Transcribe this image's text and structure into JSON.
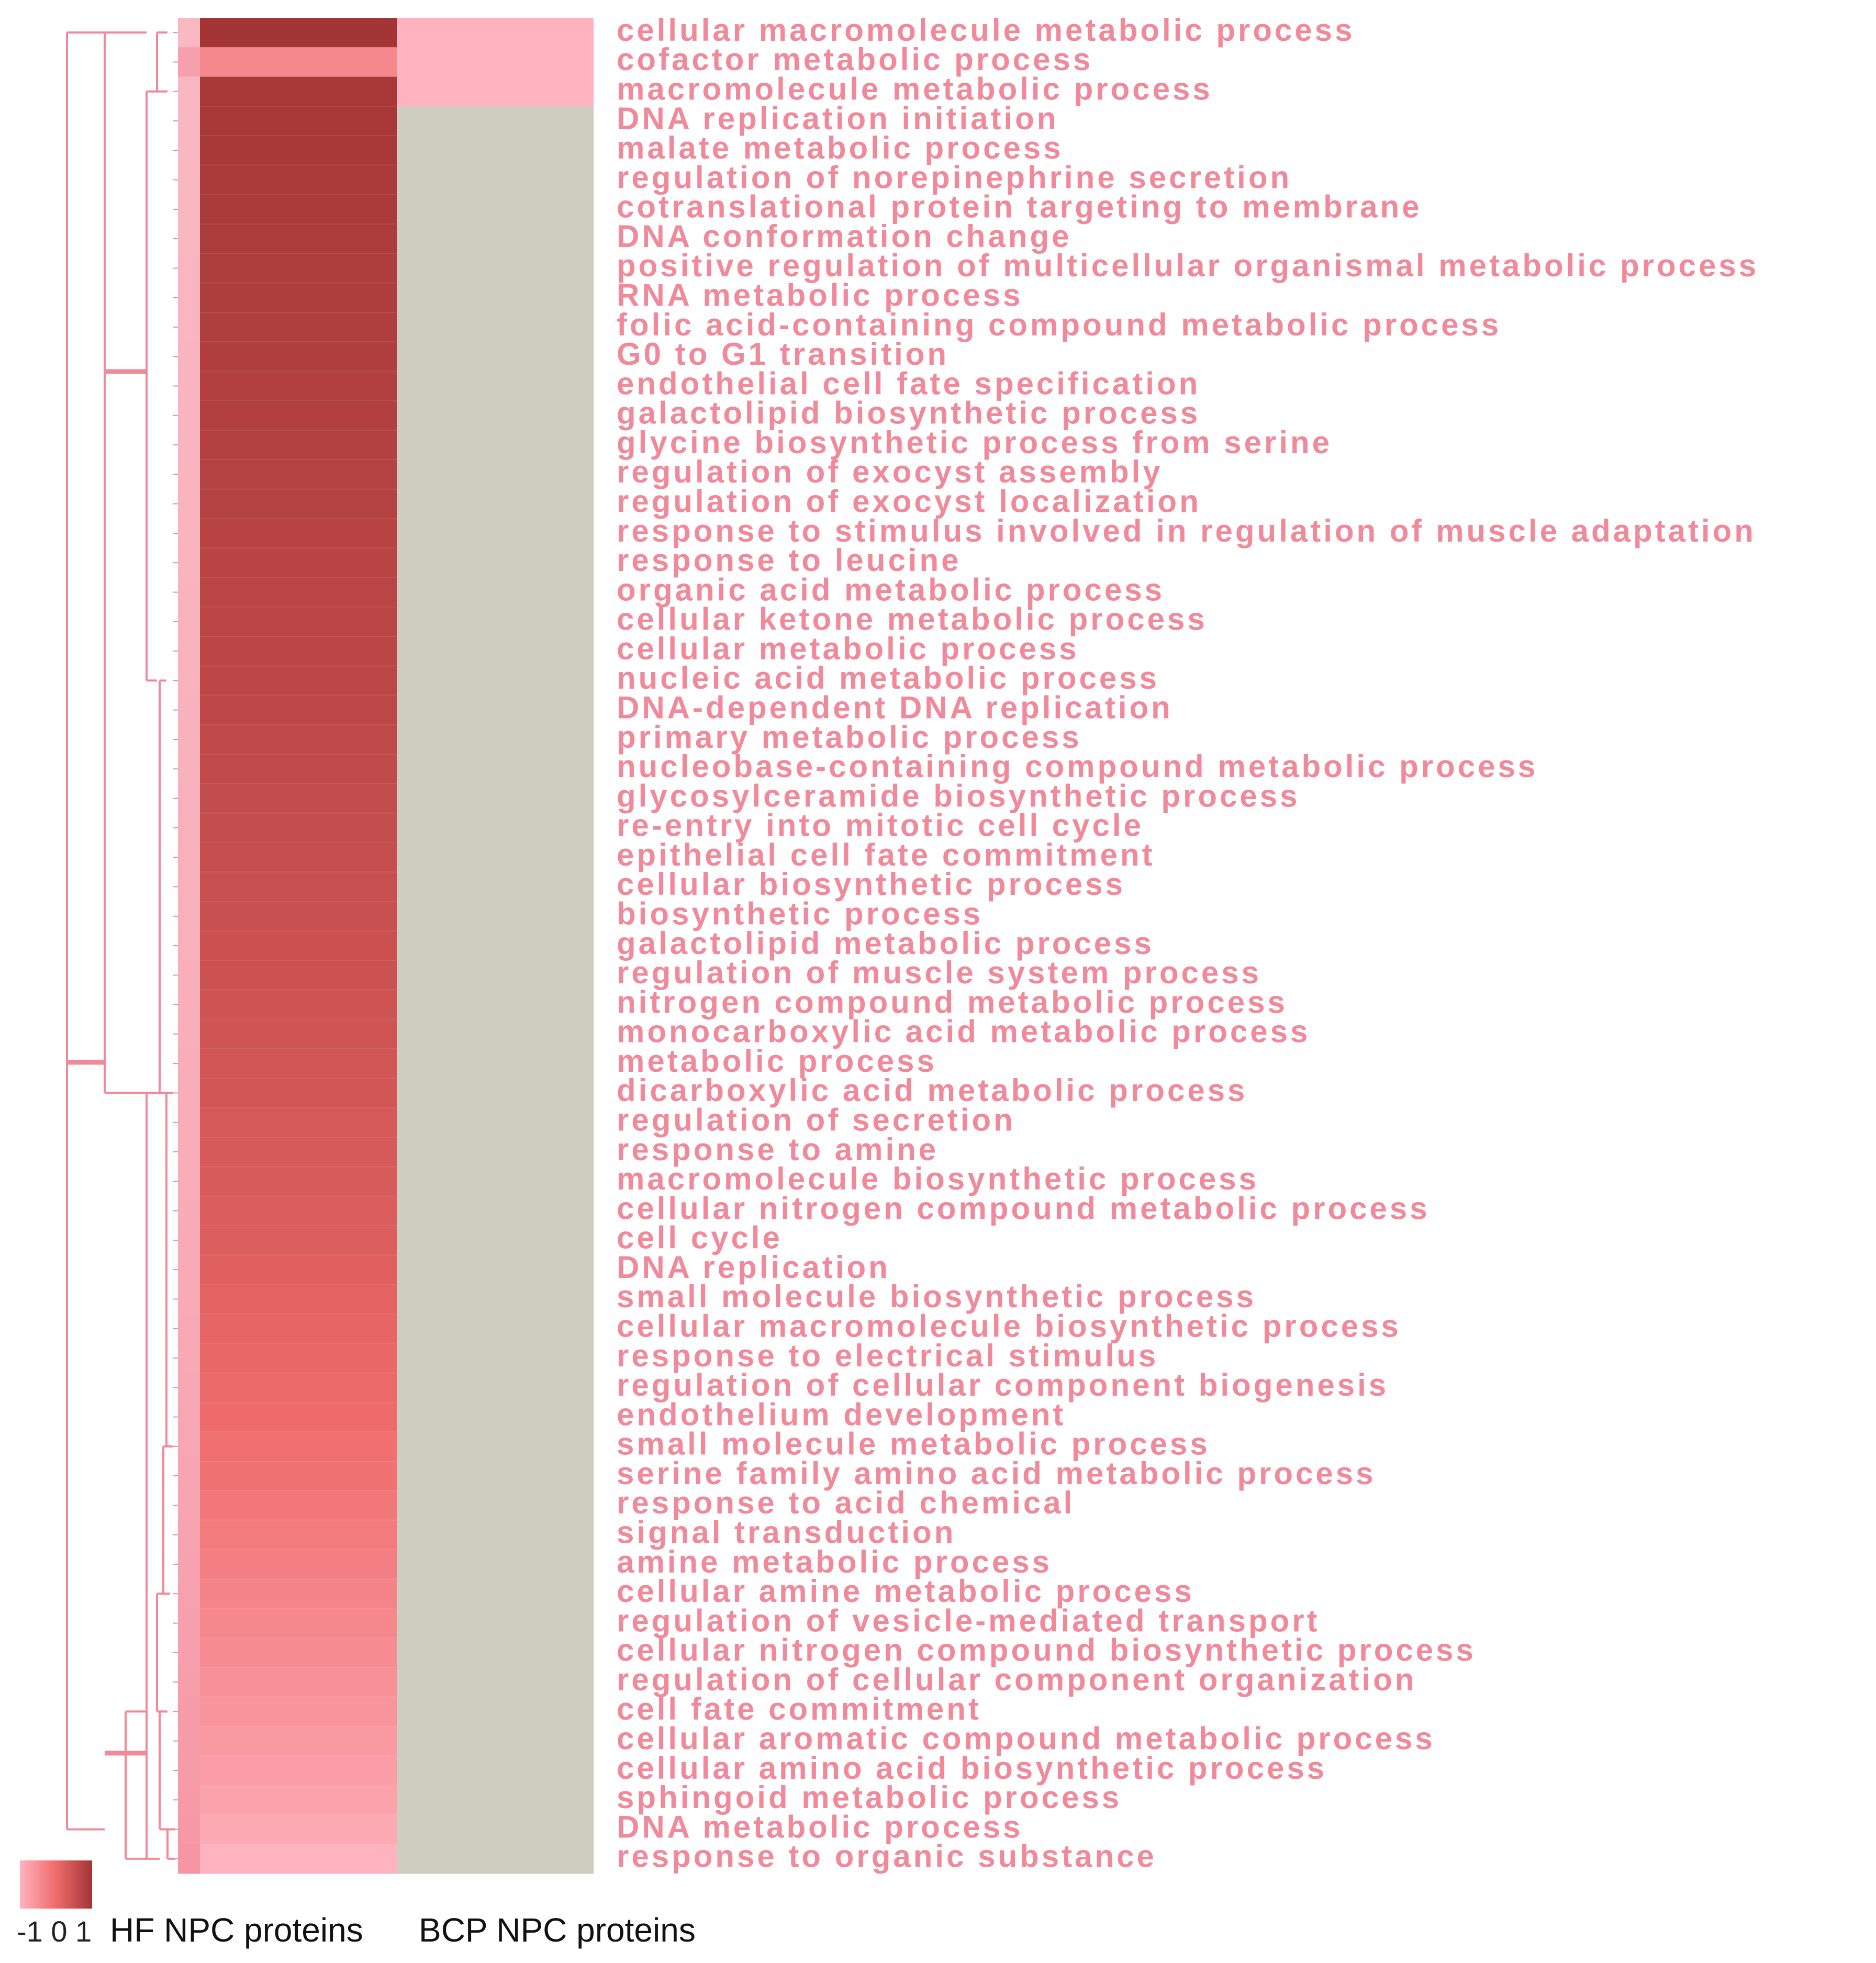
{
  "chart_data": {
    "type": "heatmap",
    "columns": [
      "HF NPC proteins",
      "BCP NPC proteins"
    ],
    "color_scale": {
      "ticks": [
        "-1",
        "0",
        "1"
      ],
      "low_color": "#ffb3bf",
      "high_color": "#a33535",
      "missing_color": "#cfcdbf",
      "label_color": "#f08a9a",
      "dendrogram_color": "#f08a9a"
    },
    "rows": [
      {
        "term": "cellular macromolecule metabolic process",
        "hf": 1.0,
        "bcp": 0.0
      },
      {
        "term": "cofactor metabolic process",
        "hf": 0.3,
        "bcp": 0.0
      },
      {
        "term": "macromolecule metabolic process",
        "hf": 0.97,
        "bcp": 0.0
      },
      {
        "term": "DNA replication initiation",
        "hf": 0.97,
        "bcp": null
      },
      {
        "term": "malate metabolic process",
        "hf": 0.96,
        "bcp": null
      },
      {
        "term": "regulation of norepinephrine secretion",
        "hf": 0.95,
        "bcp": null
      },
      {
        "term": "cotranslational protein targeting to membrane",
        "hf": 0.95,
        "bcp": null
      },
      {
        "term": "DNA conformation change",
        "hf": 0.94,
        "bcp": null
      },
      {
        "term": "positive regulation of multicellular organismal metabolic process",
        "hf": 0.93,
        "bcp": null
      },
      {
        "term": "RNA metabolic process",
        "hf": 0.93,
        "bcp": null
      },
      {
        "term": "folic acid-containing compound metabolic process",
        "hf": 0.92,
        "bcp": null
      },
      {
        "term": "G0 to G1 transition",
        "hf": 0.91,
        "bcp": null
      },
      {
        "term": "endothelial cell fate specification",
        "hf": 0.9,
        "bcp": null
      },
      {
        "term": "galactolipid biosynthetic process",
        "hf": 0.9,
        "bcp": null
      },
      {
        "term": "glycine biosynthetic process from serine",
        "hf": 0.89,
        "bcp": null
      },
      {
        "term": "regulation of exocyst assembly",
        "hf": 0.88,
        "bcp": null
      },
      {
        "term": "regulation of exocyst localization",
        "hf": 0.88,
        "bcp": null
      },
      {
        "term": "response to  stimulus involved in regulation of muscle adaptation",
        "hf": 0.87,
        "bcp": null
      },
      {
        "term": "response to leucine",
        "hf": 0.86,
        "bcp": null
      },
      {
        "term": "organic acid metabolic process",
        "hf": 0.85,
        "bcp": null
      },
      {
        "term": "cellular ketone metabolic process",
        "hf": 0.85,
        "bcp": null
      },
      {
        "term": "cellular metabolic process",
        "hf": 0.84,
        "bcp": null
      },
      {
        "term": "nucleic acid metabolic process",
        "hf": 0.83,
        "bcp": null
      },
      {
        "term": "DNA-dependent DNA replication",
        "hf": 0.82,
        "bcp": null
      },
      {
        "term": "primary metabolic process",
        "hf": 0.81,
        "bcp": null
      },
      {
        "term": "nucleobase-containing compound metabolic process",
        "hf": 0.8,
        "bcp": null
      },
      {
        "term": "glycosylceramide biosynthetic process",
        "hf": 0.79,
        "bcp": null
      },
      {
        "term": "re-entry into mitotic cell cycle",
        "hf": 0.78,
        "bcp": null
      },
      {
        "term": "epithelial cell fate commitment",
        "hf": 0.77,
        "bcp": null
      },
      {
        "term": "cellular biosynthetic process",
        "hf": 0.76,
        "bcp": null
      },
      {
        "term": "biosynthetic process",
        "hf": 0.75,
        "bcp": null
      },
      {
        "term": "galactolipid metabolic process",
        "hf": 0.74,
        "bcp": null
      },
      {
        "term": "regulation of muscle system process",
        "hf": 0.73,
        "bcp": null
      },
      {
        "term": "nitrogen compound metabolic process",
        "hf": 0.72,
        "bcp": null
      },
      {
        "term": "monocarboxylic acid metabolic process",
        "hf": 0.71,
        "bcp": null
      },
      {
        "term": "metabolic process",
        "hf": 0.7,
        "bcp": null
      },
      {
        "term": "dicarboxylic acid metabolic process",
        "hf": 0.69,
        "bcp": null
      },
      {
        "term": "regulation of secretion",
        "hf": 0.67,
        "bcp": null
      },
      {
        "term": "response to amine",
        "hf": 0.66,
        "bcp": null
      },
      {
        "term": "macromolecule biosynthetic process",
        "hf": 0.65,
        "bcp": null
      },
      {
        "term": "cellular nitrogen compound metabolic process",
        "hf": 0.63,
        "bcp": null
      },
      {
        "term": "cell cycle",
        "hf": 0.62,
        "bcp": null
      },
      {
        "term": "DNA replication",
        "hf": 0.6,
        "bcp": null
      },
      {
        "term": "small molecule biosynthetic process",
        "hf": 0.58,
        "bcp": null
      },
      {
        "term": "cellular macromolecule biosynthetic process",
        "hf": 0.56,
        "bcp": null
      },
      {
        "term": "response to electrical stimulus",
        "hf": 0.54,
        "bcp": null
      },
      {
        "term": "regulation of cellular component biogenesis",
        "hf": 0.52,
        "bcp": null
      },
      {
        "term": "endothelium development",
        "hf": 0.5,
        "bcp": null
      },
      {
        "term": "small molecule metabolic process",
        "hf": 0.47,
        "bcp": null
      },
      {
        "term": "serine family amino acid metabolic process",
        "hf": 0.45,
        "bcp": null
      },
      {
        "term": "response to acid chemical",
        "hf": 0.42,
        "bcp": null
      },
      {
        "term": "signal transduction",
        "hf": 0.39,
        "bcp": null
      },
      {
        "term": "amine metabolic process",
        "hf": 0.36,
        "bcp": null
      },
      {
        "term": "cellular amine metabolic process",
        "hf": 0.33,
        "bcp": null
      },
      {
        "term": "regulation of vesicle-mediated transport",
        "hf": 0.3,
        "bcp": null
      },
      {
        "term": "cellular nitrogen compound biosynthetic process",
        "hf": 0.27,
        "bcp": null
      },
      {
        "term": "regulation of cellular component organization",
        "hf": 0.24,
        "bcp": null
      },
      {
        "term": "cell fate commitment",
        "hf": 0.21,
        "bcp": null
      },
      {
        "term": "cellular aromatic compound metabolic process",
        "hf": 0.18,
        "bcp": null
      },
      {
        "term": "cellular amino acid biosynthetic process",
        "hf": 0.15,
        "bcp": null
      },
      {
        "term": "sphingoid metabolic process",
        "hf": 0.12,
        "bcp": null
      },
      {
        "term": "DNA metabolic process",
        "hf": 0.06,
        "bcp": null
      },
      {
        "term": "response to organic substance",
        "hf": 0.0,
        "bcp": null
      }
    ]
  },
  "footer": {
    "scale_label": "-1 0 1",
    "hf_label": "HF NPC proteins",
    "bcp_label": "BCP NPC proteins"
  }
}
